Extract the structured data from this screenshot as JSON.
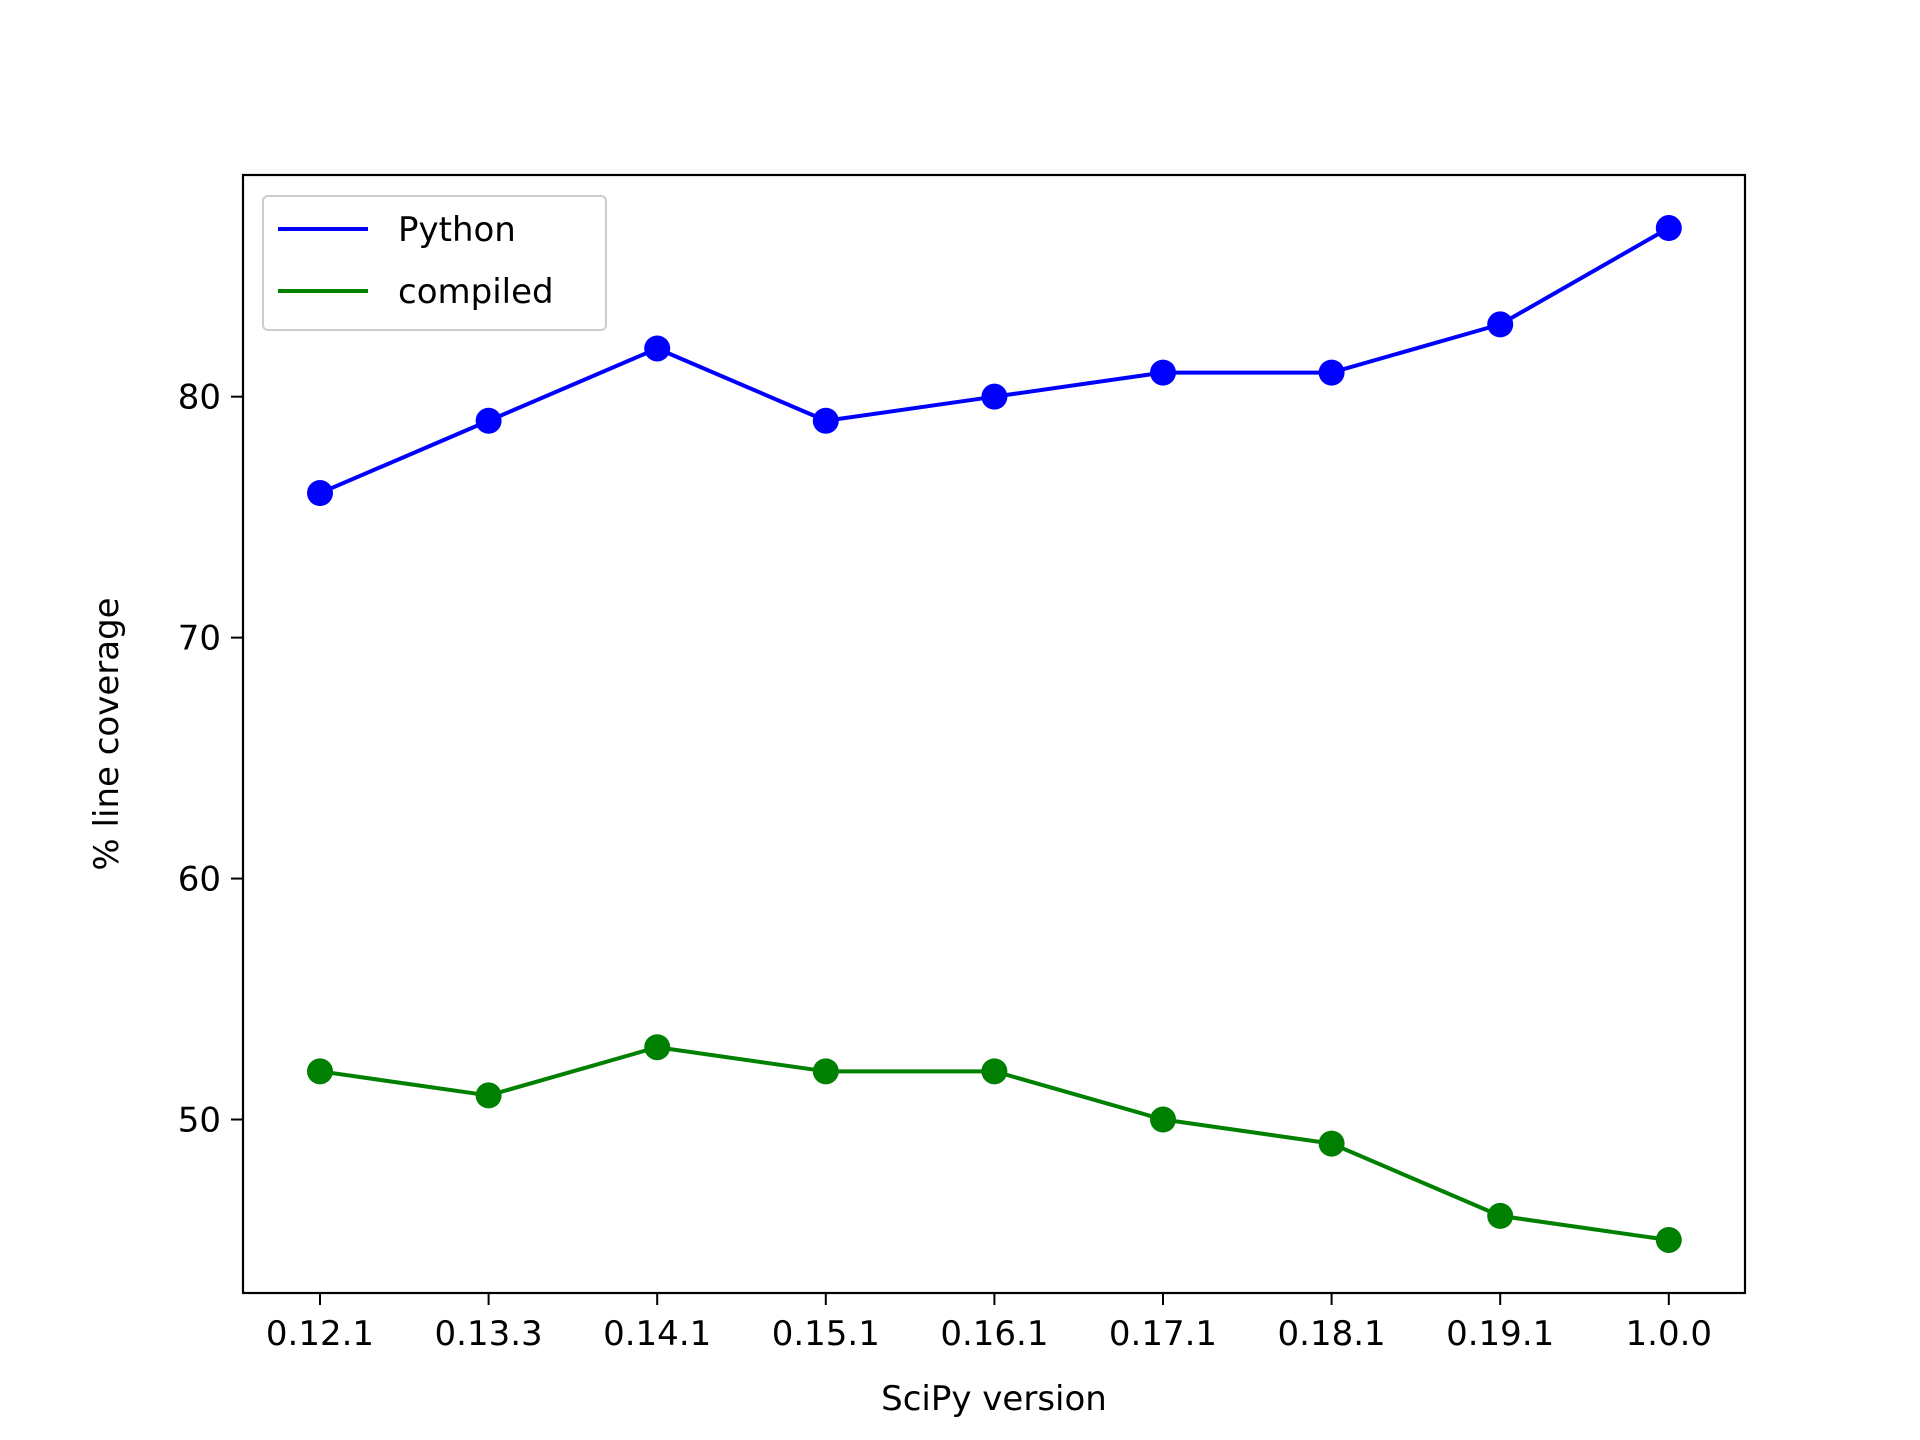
{
  "chart_data": {
    "type": "line",
    "title": "",
    "xlabel": "SciPy version",
    "ylabel": "% line coverage",
    "categories": [
      "0.12.1",
      "0.13.3",
      "0.14.1",
      "0.15.1",
      "0.16.1",
      "0.17.1",
      "0.18.1",
      "0.19.1",
      "1.0.0"
    ],
    "series": [
      {
        "name": "Python",
        "color": "#0000ff",
        "values": [
          76,
          79,
          82,
          79,
          80,
          81,
          81,
          83,
          87
        ]
      },
      {
        "name": "compiled",
        "color": "#008000",
        "values": [
          52,
          51,
          53,
          52,
          52,
          50,
          49,
          46,
          45
        ]
      }
    ],
    "yticks": [
      "50",
      "60",
      "70",
      "80"
    ],
    "ylim": [
      42.8,
      89.2
    ],
    "grid": false,
    "legend_position": "top-left",
    "markers": "circle"
  }
}
